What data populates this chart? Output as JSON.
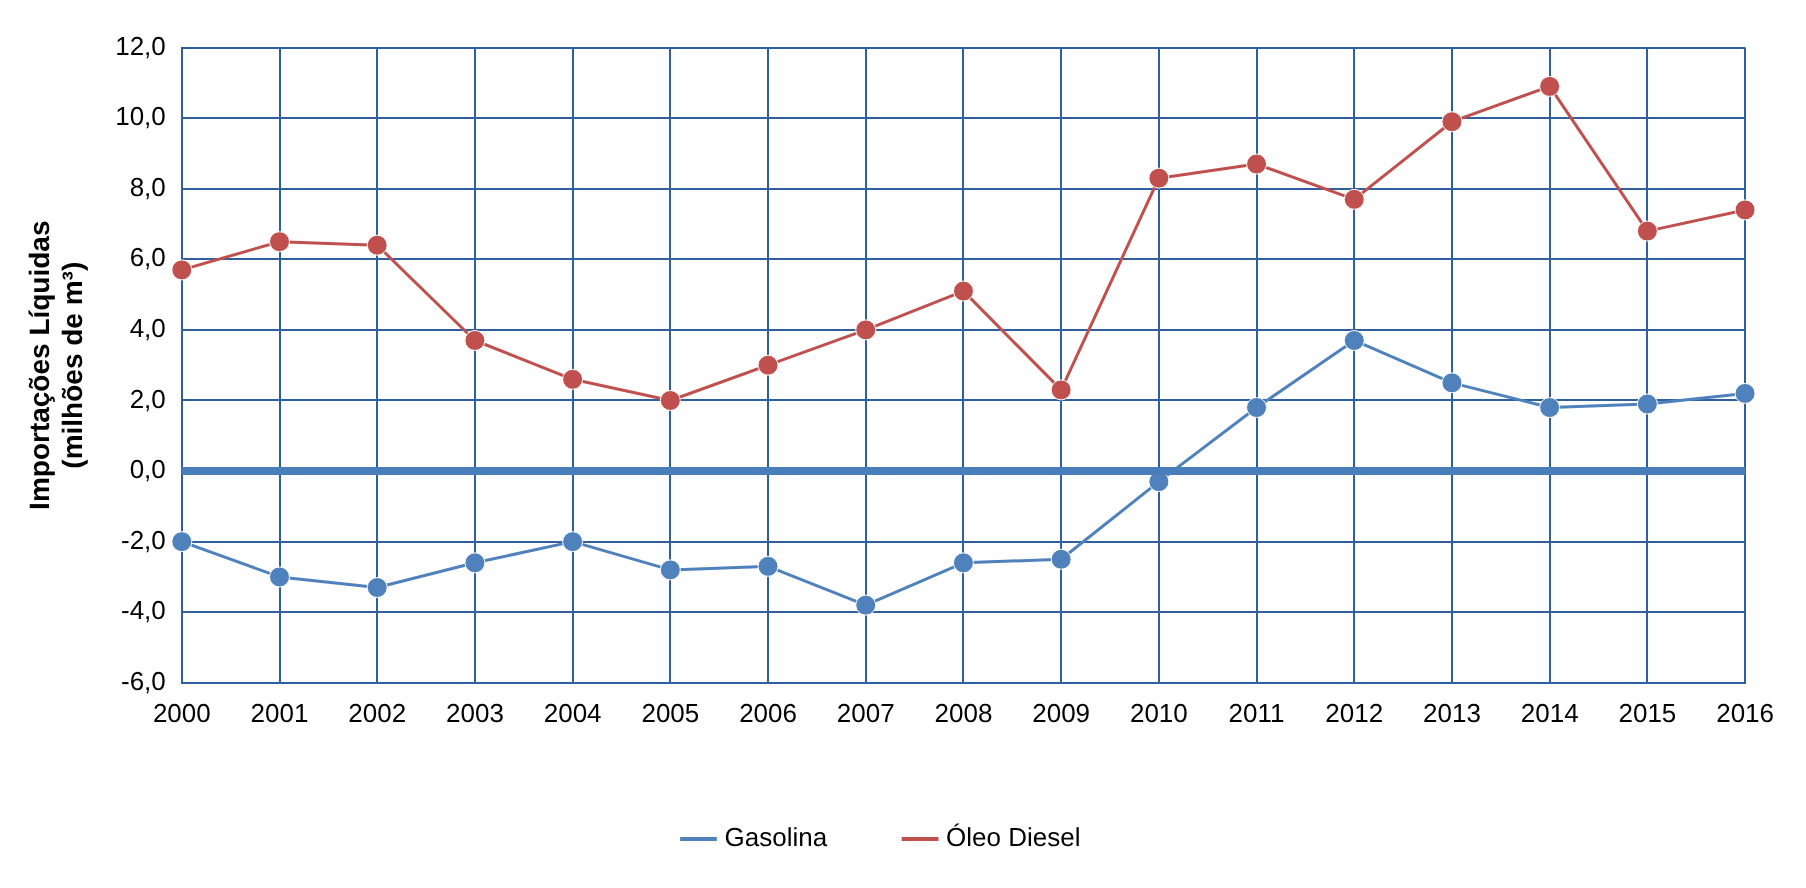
{
  "chart_data": {
    "type": "line",
    "ylabel": "Importações Líquidas\n(milhões de m³)",
    "categories": [
      "2000",
      "2001",
      "2002",
      "2003",
      "2004",
      "2005",
      "2006",
      "2007",
      "2008",
      "2009",
      "2010",
      "2011",
      "2012",
      "2013",
      "2014",
      "2015",
      "2016"
    ],
    "series": [
      {
        "name": "Gasolina",
        "color": "#4f81bd",
        "values": [
          -2.0,
          -3.0,
          -3.3,
          -2.6,
          -2.0,
          -2.8,
          -2.7,
          -3.8,
          -2.6,
          -2.5,
          -0.3,
          1.8,
          3.7,
          2.5,
          1.8,
          1.9,
          2.2
        ]
      },
      {
        "name": "Óleo Diesel",
        "color": "#c0504d",
        "values": [
          5.7,
          6.5,
          6.4,
          3.7,
          2.6,
          2.0,
          3.0,
          4.0,
          5.1,
          2.3,
          8.3,
          8.7,
          7.7,
          9.9,
          10.9,
          6.8,
          7.4
        ]
      }
    ],
    "ylim": [
      -6,
      12
    ],
    "yticks": [
      {
        "value": -6,
        "label": "-6,0"
      },
      {
        "value": -4,
        "label": "-4,0"
      },
      {
        "value": -2,
        "label": "-2,0"
      },
      {
        "value": 0,
        "label": "0,0"
      },
      {
        "value": 2,
        "label": "2,0"
      },
      {
        "value": 4,
        "label": "4,0"
      },
      {
        "value": 6,
        "label": "6,0"
      },
      {
        "value": 8,
        "label": "8,0"
      },
      {
        "value": 10,
        "label": "10,0"
      },
      {
        "value": 12,
        "label": "12,0"
      }
    ],
    "ref_lines": [
      {
        "axis": "y",
        "value": 0,
        "color": "#4a7ebb"
      }
    ],
    "grid": true,
    "legend": "bottom",
    "marker": "circle",
    "line_style": "solid"
  }
}
